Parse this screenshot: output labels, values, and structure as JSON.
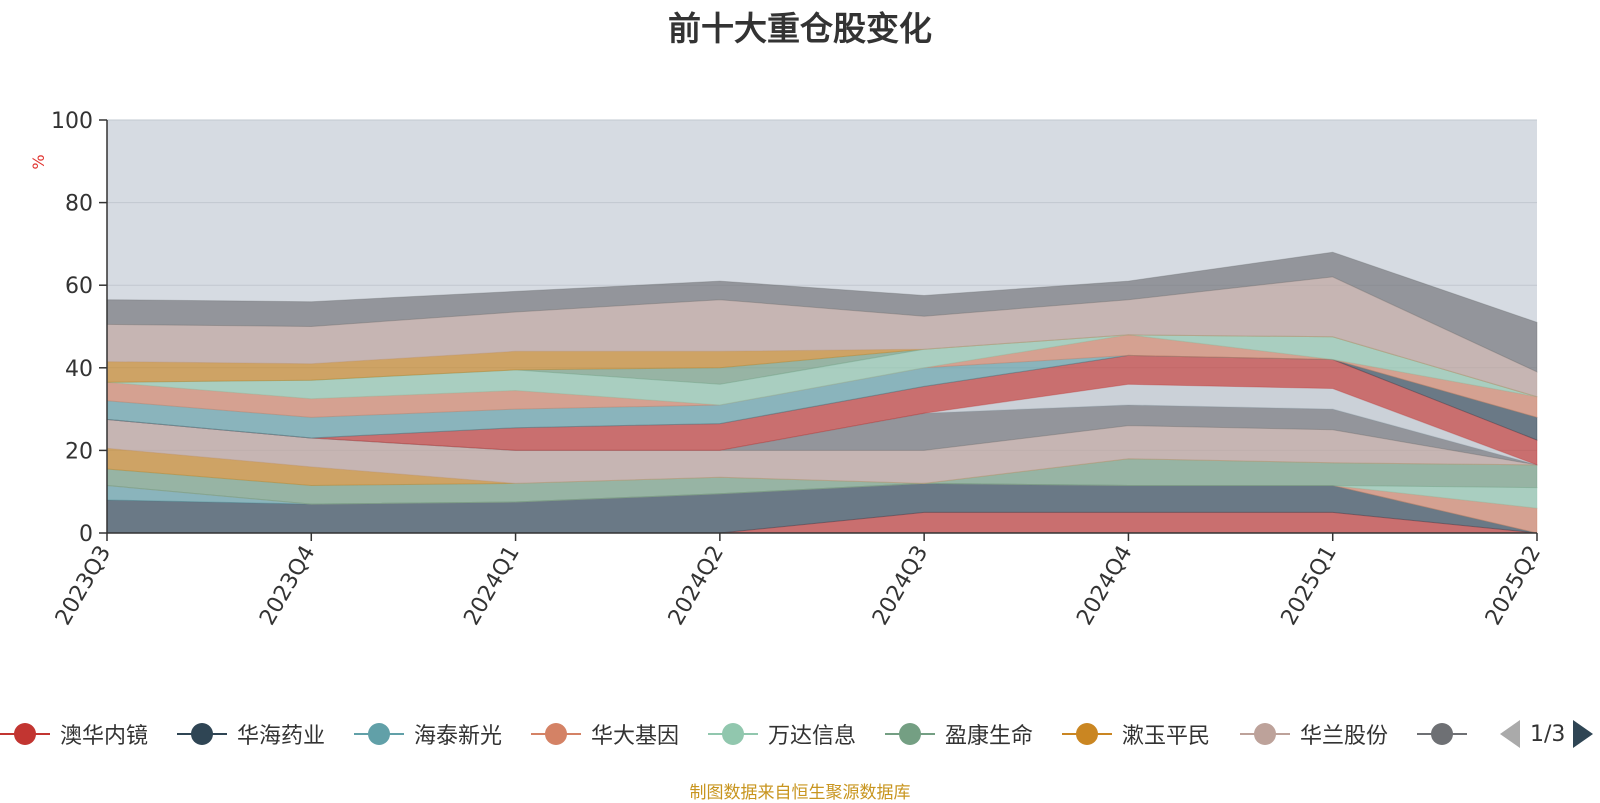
{
  "title": "前十大重仓股变化",
  "source_note": "制图数据来自恒生聚源数据库",
  "legend": {
    "page_text": "1/3",
    "items": [
      {
        "name": "澳华内镜",
        "color": "#c23531"
      },
      {
        "name": "华海药业",
        "color": "#2f4554"
      },
      {
        "name": "海泰新光",
        "color": "#61a0a8"
      },
      {
        "name": "华大基因",
        "color": "#d48265"
      },
      {
        "name": "万达信息",
        "color": "#91c7ae"
      },
      {
        "name": "盈康生命",
        "color": "#749f83"
      },
      {
        "name": "漱玉平民",
        "color": "#ca8622"
      },
      {
        "name": "华兰股份",
        "color": "#bda29a"
      },
      {
        "name": "",
        "color": "#6e7074"
      }
    ]
  },
  "chart_data": {
    "type": "area",
    "stacked": true,
    "ylabel": "%",
    "ylim": [
      0,
      100
    ],
    "yticks": [
      0,
      20,
      40,
      60,
      80,
      100
    ],
    "categories": [
      "2023Q3",
      "2023Q4",
      "2024Q1",
      "2024Q2",
      "2024Q3",
      "2024Q4",
      "2025Q1",
      "2025Q2"
    ],
    "background_color": "#d6dbe2",
    "series": [
      {
        "name": "",
        "color": "#c23531",
        "values": [
          0,
          0,
          0,
          0,
          5,
          5,
          5,
          0
        ]
      },
      {
        "name": "",
        "color": "#2f4554",
        "values": [
          8,
          7,
          7.5,
          9.5,
          7,
          6.5,
          6.5,
          0
        ]
      },
      {
        "name": "",
        "color": "#61a0a8",
        "values": [
          3.5,
          0,
          0,
          0,
          0,
          0,
          0,
          0
        ]
      },
      {
        "name": "",
        "color": "#d48265",
        "values": [
          0,
          0,
          0,
          0,
          0,
          0,
          0,
          6
        ]
      },
      {
        "name": "",
        "color": "#91c7ae",
        "values": [
          0,
          0,
          0,
          0,
          0,
          0,
          0,
          5
        ]
      },
      {
        "name": "",
        "color": "#749f83",
        "values": [
          4,
          4.5,
          4.5,
          4,
          0,
          6.5,
          5.5,
          5.5
        ]
      },
      {
        "name": "",
        "color": "#ca8622",
        "values": [
          5,
          4.5,
          0,
          0,
          0,
          0,
          0,
          0
        ]
      },
      {
        "name": "",
        "color": "#bda29a",
        "values": [
          7,
          7,
          8,
          6.5,
          8,
          8,
          8,
          0
        ]
      },
      {
        "name": "",
        "color": "#6e7074",
        "values": [
          0,
          0,
          0,
          0,
          9,
          5,
          5,
          0
        ]
      },
      {
        "name": "",
        "color": "#546570",
        "values": [
          0,
          0,
          0,
          0,
          0,
          0,
          0,
          0
        ]
      },
      {
        "name": "",
        "color": "#c4ccd3",
        "values": [
          0,
          0,
          0,
          0,
          0,
          5,
          5,
          0
        ]
      },
      {
        "name": "",
        "color": "#c23531",
        "values": [
          0,
          0,
          5.5,
          6.5,
          6.5,
          7,
          7,
          6
        ]
      },
      {
        "name": "",
        "color": "#2f4554",
        "values": [
          0,
          0,
          0,
          0,
          0,
          0,
          0,
          5.5
        ]
      },
      {
        "name": "",
        "color": "#61a0a8",
        "values": [
          4.5,
          5,
          4.5,
          4.5,
          4.5,
          0,
          0,
          0
        ]
      },
      {
        "name": "",
        "color": "#d48265",
        "values": [
          4.5,
          4.5,
          4.5,
          0,
          0,
          5,
          0,
          5
        ]
      },
      {
        "name": "",
        "color": "#91c7ae",
        "values": [
          0,
          4.5,
          5,
          5,
          4.5,
          0,
          5.5,
          0
        ]
      },
      {
        "name": "",
        "color": "#749f83",
        "values": [
          0,
          0,
          0,
          4,
          0,
          0,
          0,
          0
        ]
      },
      {
        "name": "",
        "color": "#ca8622",
        "values": [
          5,
          4,
          4.5,
          4,
          0,
          0,
          0,
          0
        ]
      },
      {
        "name": "",
        "color": "#bda29a",
        "values": [
          9,
          9,
          9.5,
          12.5,
          8,
          8.5,
          14.5,
          6
        ]
      },
      {
        "name": "",
        "color": "#6e7074",
        "values": [
          6,
          6,
          5,
          4.5,
          5,
          4.5,
          6,
          12
        ]
      }
    ]
  }
}
